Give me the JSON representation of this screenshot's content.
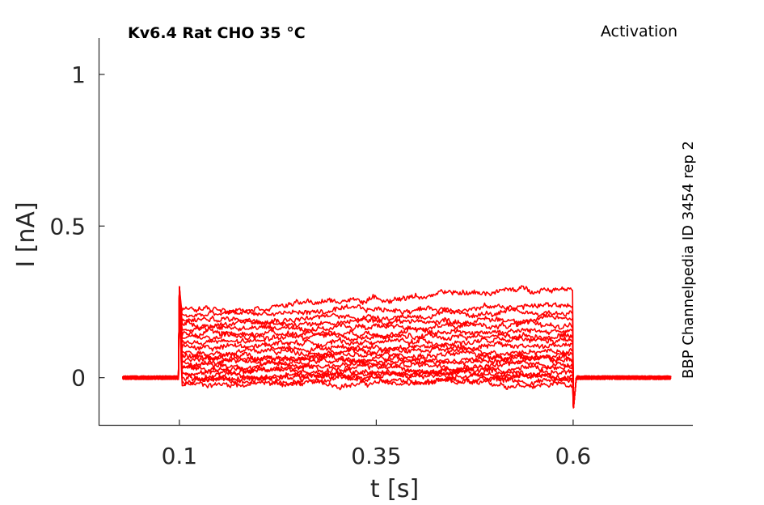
{
  "chart_data": {
    "type": "line",
    "title": "Kv6.4  Rat  CHO  35 °C",
    "subtitle": "Activation",
    "annotation": "BBP Channelpedia ID 3454 rep 2",
    "xlabel": "t [s]",
    "ylabel": "I [nA]",
    "xlim": [
      -0.002,
      0.752
    ],
    "ylim": [
      -0.157,
      1.12
    ],
    "xticks": [
      0.1,
      0.35,
      0.6
    ],
    "xtick_labels": [
      "0.1",
      "0.35",
      "0.6"
    ],
    "yticks": [
      0,
      0.5,
      1
    ],
    "ytick_labels": [
      "0",
      "0.5",
      "1"
    ],
    "grid": false,
    "line_color": "#ff0000",
    "baseline_level": 0.0,
    "step_on": 0.1,
    "step_off": 0.6,
    "record_start": 0.028,
    "record_end": 0.725,
    "onset_spike_peak": 0.3,
    "offset_spike_trough": -0.11,
    "series": [
      {
        "start": -0.02,
        "end": -0.02
      },
      {
        "start": -0.01,
        "end": -0.01
      },
      {
        "start": 0.0,
        "end": 0.0
      },
      {
        "start": 0.01,
        "end": 0.01
      },
      {
        "start": 0.02,
        "end": 0.02
      },
      {
        "start": 0.03,
        "end": 0.03
      },
      {
        "start": 0.04,
        "end": 0.045
      },
      {
        "start": 0.05,
        "end": 0.055
      },
      {
        "start": 0.06,
        "end": 0.065
      },
      {
        "start": 0.07,
        "end": 0.075
      },
      {
        "start": 0.085,
        "end": 0.09
      },
      {
        "start": 0.1,
        "end": 0.105
      },
      {
        "start": 0.115,
        "end": 0.12
      },
      {
        "start": 0.13,
        "end": 0.14
      },
      {
        "start": 0.145,
        "end": 0.155
      },
      {
        "start": 0.16,
        "end": 0.175
      },
      {
        "start": 0.175,
        "end": 0.195
      },
      {
        "start": 0.19,
        "end": 0.215
      },
      {
        "start": 0.205,
        "end": 0.24
      },
      {
        "start": 0.22,
        "end": 0.3
      }
    ]
  }
}
